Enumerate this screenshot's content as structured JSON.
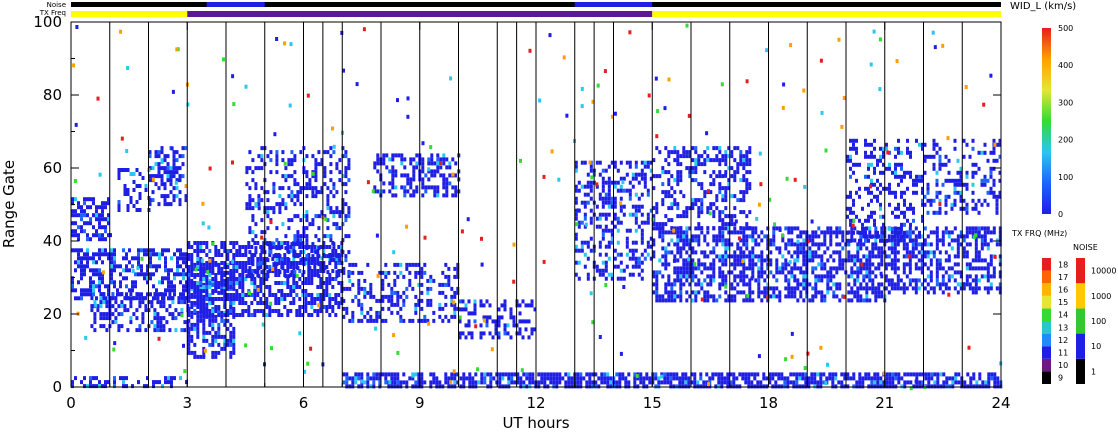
{
  "chart_data": {
    "type": "heatmap",
    "title": "",
    "xlabel": "UT hours",
    "ylabel": "Range Gate",
    "xlim": [
      0,
      24
    ],
    "ylim": [
      0,
      100
    ],
    "x_ticks": [
      "0",
      "3",
      "6",
      "9",
      "12",
      "15",
      "18",
      "21",
      "24"
    ],
    "y_ticks": [
      "0",
      "20",
      "40",
      "60",
      "80",
      "100"
    ],
    "scan_boundaries_hours": [
      1,
      2,
      3,
      4,
      5,
      6,
      6.5,
      7,
      8,
      9,
      10,
      11,
      11.5,
      12,
      13,
      13.5,
      14,
      15,
      16,
      17,
      18,
      19,
      20,
      21,
      22,
      23
    ],
    "top_bars": {
      "noise_label": "Noise",
      "txfreq_label": "TX Freq",
      "txfreq_segments": [
        {
          "start": 0,
          "end": 3,
          "color": "#ffff00"
        },
        {
          "start": 3,
          "end": 15,
          "color": "#5a1a96"
        },
        {
          "start": 15,
          "end": 24,
          "color": "#ffff00"
        }
      ]
    },
    "colorbars": [
      {
        "name": "WID_L (km/s)",
        "ticks": [
          "0",
          "100",
          "200",
          "300",
          "400",
          "500"
        ],
        "range": [
          0,
          500
        ],
        "colors": [
          "#1e1ee6",
          "#1e64ff",
          "#28c8f0",
          "#32dc32",
          "#e6e632",
          "#ffa000",
          "#e61e1e"
        ]
      },
      {
        "name": "TX FRQ (MHz)",
        "ticks": [
          "9",
          "10",
          "11",
          "12",
          "13",
          "14",
          "15",
          "16",
          "17",
          "18"
        ],
        "colors": [
          "#000000",
          "#6a1a80",
          "#1e1ee6",
          "#1e8cff",
          "#28c8c8",
          "#32dc32",
          "#e6e632",
          "#ffb400",
          "#ff6400",
          "#e61e1e"
        ]
      },
      {
        "name": "NOISE",
        "ticks": [
          "1",
          "10",
          "100",
          "1000",
          "10000"
        ],
        "colors": [
          "#000000",
          "#1e1ee6",
          "#32c832",
          "#ffc800",
          "#e61e1e"
        ]
      }
    ],
    "echo_regions": [
      {
        "t0": 0.0,
        "t1": 1.0,
        "g0": 40,
        "g1": 52,
        "density": 0.55
      },
      {
        "t0": 0.0,
        "t1": 3.0,
        "g0": 24,
        "g1": 38,
        "density": 0.5
      },
      {
        "t0": 0.5,
        "t1": 3.0,
        "g0": 16,
        "g1": 26,
        "density": 0.45
      },
      {
        "t0": 1.2,
        "t1": 2.0,
        "g0": 48,
        "g1": 60,
        "density": 0.35
      },
      {
        "t0": 2.0,
        "t1": 3.0,
        "g0": 50,
        "g1": 66,
        "density": 0.4
      },
      {
        "t0": 3.0,
        "t1": 4.2,
        "g0": 8,
        "g1": 34,
        "density": 0.5
      },
      {
        "t0": 3.0,
        "t1": 7.0,
        "g0": 20,
        "g1": 40,
        "density": 0.6
      },
      {
        "t0": 4.5,
        "t1": 7.2,
        "g0": 30,
        "g1": 66,
        "density": 0.3
      },
      {
        "t0": 7.0,
        "t1": 10.0,
        "g0": 18,
        "g1": 34,
        "density": 0.35
      },
      {
        "t0": 7.8,
        "t1": 10.0,
        "g0": 52,
        "g1": 64,
        "density": 0.45
      },
      {
        "t0": 10.0,
        "t1": 12.0,
        "g0": 14,
        "g1": 24,
        "density": 0.35
      },
      {
        "t0": 13.0,
        "t1": 15.0,
        "g0": 30,
        "g1": 62,
        "density": 0.4
      },
      {
        "t0": 15.0,
        "t1": 21.0,
        "g0": 24,
        "g1": 44,
        "density": 0.55
      },
      {
        "t0": 15.0,
        "t1": 17.5,
        "g0": 44,
        "g1": 66,
        "density": 0.4
      },
      {
        "t0": 21.0,
        "t1": 24.0,
        "g0": 26,
        "g1": 44,
        "density": 0.55
      },
      {
        "t0": 20.0,
        "t1": 22.0,
        "g0": 40,
        "g1": 68,
        "density": 0.3
      },
      {
        "t0": 22.0,
        "t1": 24.0,
        "g0": 48,
        "g1": 68,
        "density": 0.35
      },
      {
        "t0": 7.0,
        "t1": 24.0,
        "g0": 0,
        "g1": 4,
        "density": 0.7
      },
      {
        "t0": 0.0,
        "t1": 3.0,
        "g0": 0,
        "g1": 3,
        "density": 0.35
      }
    ]
  }
}
